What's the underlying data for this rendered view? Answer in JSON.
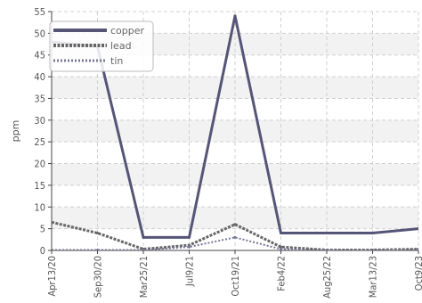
{
  "chart_data": {
    "type": "line",
    "ylabel": "ppm",
    "xlabel": "",
    "ylim": [
      0,
      55
    ],
    "y_ticks": [
      0,
      5,
      10,
      15,
      20,
      25,
      30,
      35,
      40,
      45,
      50,
      55
    ],
    "categories": [
      "Apr13/20",
      "Sep30/20",
      "Mar25/21",
      "Jul9/21",
      "Oct19/21",
      "Feb4/22",
      "Aug25/22",
      "Mar13/23",
      "Oct9/23"
    ],
    "grid": true,
    "legend_position": "top-left",
    "series": [
      {
        "name": "copper",
        "values": [
          48,
          47,
          3,
          3,
          54,
          4,
          4,
          4,
          5
        ],
        "color": "#555577",
        "style": "solid"
      },
      {
        "name": "lead",
        "values": [
          6.5,
          4,
          0.3,
          1.2,
          6,
          0.8,
          0.1,
          0.1,
          0.3
        ],
        "color": "#666666",
        "style": "dashed"
      },
      {
        "name": "tin",
        "values": [
          0.1,
          0.1,
          0.1,
          0.8,
          3,
          0.3,
          0,
          0,
          0.1
        ],
        "color": "#777799",
        "style": "dotted"
      }
    ]
  }
}
